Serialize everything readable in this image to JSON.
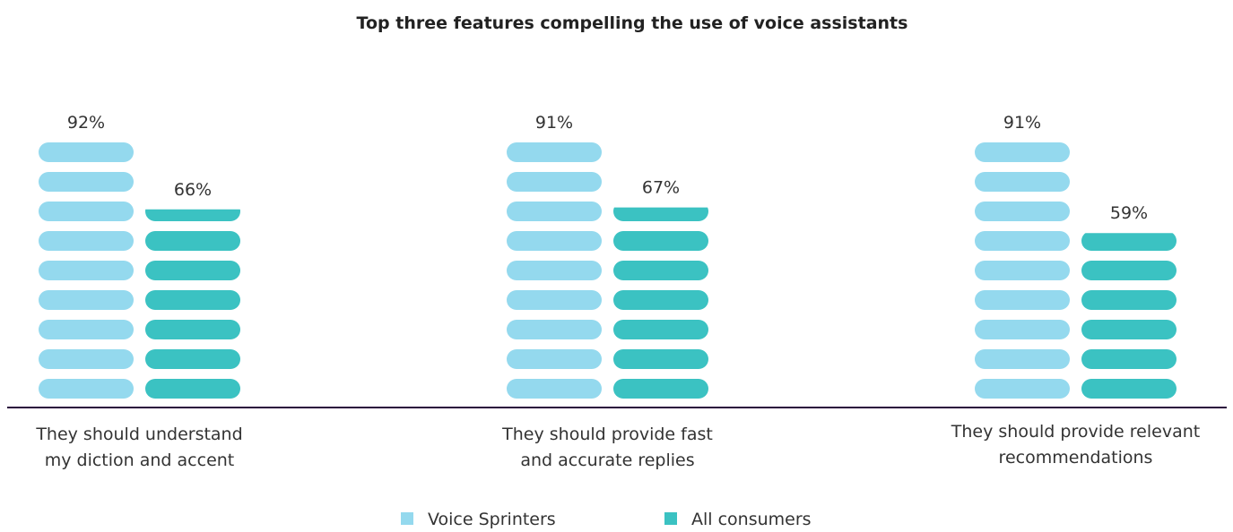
{
  "chart_data": {
    "type": "bar",
    "title": "Top three features compelling the use of voice assistants",
    "categories": [
      [
        "They should understand",
        "my diction and accent"
      ],
      [
        "They should provide fast",
        "and accurate replies"
      ],
      [
        "They should provide relevant",
        "recommendations"
      ]
    ],
    "series": [
      {
        "name": "Voice Sprinters",
        "values": [
          92,
          91,
          91
        ],
        "labels": [
          "92%",
          "91%",
          "91%"
        ],
        "color": "#94d9ee"
      },
      {
        "name": "All consumers",
        "values": [
          66,
          67,
          59
        ],
        "labels": [
          "66%",
          "67%",
          "59%"
        ],
        "color": "#3bc2c2"
      }
    ],
    "ylim": [
      0,
      100
    ],
    "grid": false,
    "legend_position": "bottom-center",
    "axis_color": "#2b0a3d"
  }
}
